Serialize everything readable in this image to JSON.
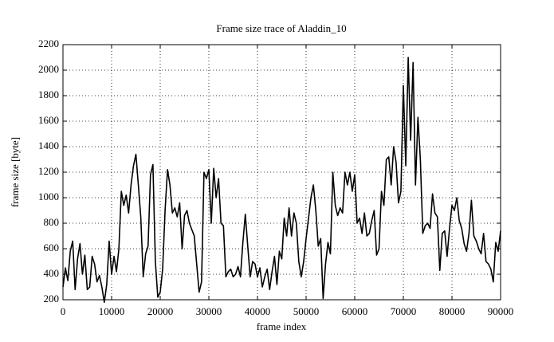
{
  "chart_data": {
    "type": "line",
    "title": "Frame size trace of Aladdin_10",
    "x_label": "frame index",
    "y_label": "frame size [byte]",
    "grid": true,
    "xlim": [
      0,
      90000
    ],
    "xticks": [
      0,
      10000,
      20000,
      30000,
      40000,
      50000,
      60000,
      70000,
      80000,
      90000
    ],
    "ylim": [
      200,
      2200
    ],
    "yticks": [
      200,
      400,
      600,
      800,
      1000,
      1200,
      1400,
      1600,
      1800,
      2000,
      2200
    ],
    "x": [
      0,
      500,
      1000,
      1500,
      2000,
      2500,
      3000,
      3500,
      4000,
      4500,
      5000,
      5500,
      6000,
      6500,
      7000,
      7500,
      8000,
      8500,
      9000,
      9500,
      10000,
      10500,
      11000,
      11500,
      12000,
      12500,
      13000,
      13500,
      14000,
      14500,
      15000,
      15500,
      16000,
      16500,
      17000,
      17500,
      18000,
      18500,
      19000,
      19500,
      20000,
      20500,
      21000,
      21500,
      22000,
      22500,
      23000,
      23500,
      24000,
      24500,
      25000,
      25500,
      26000,
      26500,
      27000,
      27500,
      28000,
      28500,
      29000,
      29500,
      30000,
      30500,
      31000,
      31500,
      32000,
      32500,
      33000,
      33500,
      34000,
      34500,
      35000,
      35500,
      36000,
      36500,
      37000,
      37500,
      38000,
      38500,
      39000,
      39500,
      40000,
      40500,
      41000,
      41500,
      42000,
      42500,
      43000,
      43500,
      44000,
      44500,
      45000,
      45500,
      46000,
      46500,
      47000,
      47500,
      48000,
      48500,
      49000,
      49500,
      50000,
      50500,
      51000,
      51500,
      52000,
      52500,
      53000,
      53500,
      54000,
      54500,
      55000,
      55500,
      56000,
      56500,
      57000,
      57500,
      58000,
      58500,
      59000,
      59500,
      60000,
      60500,
      61000,
      61500,
      62000,
      62500,
      63000,
      63500,
      64000,
      64500,
      65000,
      65500,
      66000,
      66500,
      67000,
      67500,
      68000,
      68500,
      69000,
      69500,
      70000,
      70500,
      71000,
      71500,
      72000,
      72500,
      73000,
      73500,
      74000,
      74500,
      75000,
      75500,
      76000,
      76500,
      77000,
      77500,
      78000,
      78500,
      79000,
      79500,
      80000,
      80500,
      81000,
      81500,
      82000,
      82500,
      83000,
      83500,
      84000,
      84500,
      85000,
      85500,
      86000,
      86500,
      87000,
      87500,
      88000,
      88500,
      89000,
      89500,
      90000
    ],
    "series": [
      {
        "color": "#000000",
        "values": [
          300,
          450,
          350,
          580,
          660,
          280,
          520,
          640,
          400,
          550,
          280,
          300,
          540,
          480,
          340,
          390,
          300,
          180,
          320,
          660,
          400,
          540,
          420,
          600,
          1050,
          940,
          1020,
          880,
          1100,
          1250,
          1340,
          1100,
          850,
          380,
          560,
          620,
          1180,
          1260,
          500,
          220,
          260,
          440,
          900,
          1220,
          1100,
          880,
          920,
          850,
          960,
          600,
          860,
          900,
          800,
          750,
          700,
          480,
          260,
          340,
          1200,
          1150,
          1220,
          800,
          1230,
          1000,
          1150,
          800,
          780,
          380,
          420,
          440,
          380,
          400,
          460,
          380,
          650,
          870,
          620,
          380,
          500,
          480,
          380,
          450,
          300,
          380,
          440,
          280,
          420,
          540,
          320,
          580,
          520,
          840,
          700,
          920,
          700,
          880,
          800,
          500,
          380,
          500,
          680,
          840,
          1000,
          1100,
          900,
          620,
          680,
          210,
          480,
          650,
          560,
          1200,
          940,
          860,
          920,
          880,
          1200,
          1100,
          1200,
          1050,
          1180,
          800,
          840,
          720,
          880,
          700,
          720,
          820,
          900,
          550,
          600,
          1050,
          940,
          1300,
          1320,
          1100,
          1400,
          1280,
          960,
          1050,
          1880,
          1250,
          2100,
          1450,
          2060,
          1100,
          1630,
          1300,
          720,
          780,
          800,
          760,
          1030,
          880,
          850,
          430,
          720,
          740,
          540,
          760,
          940,
          900,
          1000,
          820,
          760,
          640,
          580,
          720,
          980,
          700,
          660,
          600,
          560,
          720,
          500,
          480,
          440,
          340,
          650,
          580,
          740
        ]
      }
    ]
  }
}
